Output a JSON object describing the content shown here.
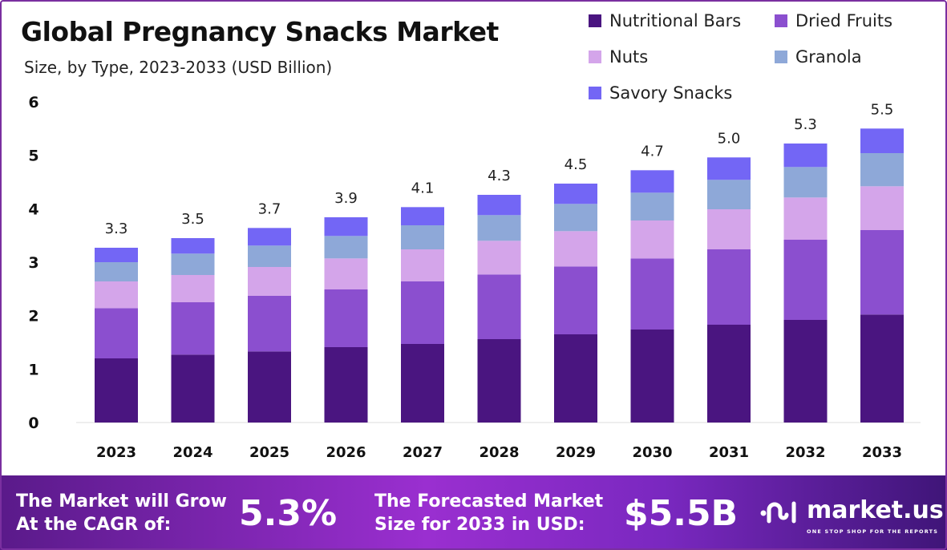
{
  "chart_data": {
    "type": "bar",
    "stacked": true,
    "title": "Global Pregnancy Snacks Market",
    "subtitle": "Size, by Type, 2023-2033 (USD Billion)",
    "xlabel": "",
    "ylabel": "",
    "ylim": [
      0,
      6
    ],
    "yticks": [
      "0",
      "1",
      "2",
      "3",
      "4",
      "5",
      "6"
    ],
    "grid": false,
    "legend_position": "top-right",
    "categories": [
      "2023",
      "2024",
      "2025",
      "2026",
      "2027",
      "2028",
      "2029",
      "2030",
      "2031",
      "2032",
      "2033"
    ],
    "totals_labels": [
      "3.3",
      "3.5",
      "3.7",
      "3.9",
      "4.1",
      "4.3",
      "4.5",
      "4.7",
      "5.0",
      "5.3",
      "5.5"
    ],
    "series": [
      {
        "name": "Nutritional Bars",
        "color": "#4a1580",
        "values": [
          1.2,
          1.27,
          1.33,
          1.41,
          1.47,
          1.56,
          1.65,
          1.74,
          1.83,
          1.92,
          2.02
        ]
      },
      {
        "name": "Dried Fruits",
        "color": "#8b4fcf",
        "values": [
          0.94,
          0.98,
          1.04,
          1.08,
          1.17,
          1.21,
          1.27,
          1.33,
          1.41,
          1.5,
          1.58
        ]
      },
      {
        "name": "Nuts",
        "color": "#d4a5ea",
        "values": [
          0.5,
          0.51,
          0.54,
          0.58,
          0.6,
          0.63,
          0.66,
          0.71,
          0.75,
          0.79,
          0.82
        ]
      },
      {
        "name": "Granola",
        "color": "#8ea8d8",
        "values": [
          0.36,
          0.4,
          0.4,
          0.42,
          0.45,
          0.48,
          0.51,
          0.52,
          0.55,
          0.57,
          0.62
        ]
      },
      {
        "name": "Savory Snacks",
        "color": "#7366f5",
        "values": [
          0.27,
          0.29,
          0.33,
          0.35,
          0.34,
          0.38,
          0.38,
          0.42,
          0.42,
          0.44,
          0.46
        ]
      }
    ]
  },
  "footer": {
    "cagr_label_1": "The Market will Grow",
    "cagr_label_2": "At the CAGR of:",
    "cagr_value": "5.3%",
    "forecast_label_1": "The Forecasted Market",
    "forecast_label_2": "Size for 2033 in USD:",
    "forecast_value": "$5.5B",
    "brand": "market.us",
    "tagline": "ONE STOP SHOP FOR THE REPORTS"
  }
}
